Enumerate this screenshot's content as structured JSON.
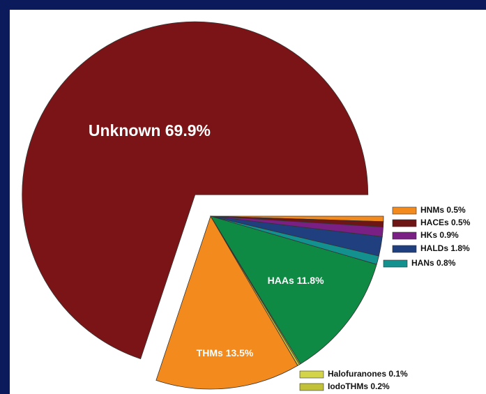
{
  "chart_data": {
    "type": "pie",
    "labels": [
      "HNMs 0.5%",
      "HACEs 0.5%",
      "HKs 0.9%",
      "HALDs 1.8%",
      "HANs 0.8%",
      "HAAs 11.8%",
      "Halofuranones 0.1%",
      "IodoTHMs 0.2%",
      "THMs 13.5%",
      "Unknown 69.9%"
    ],
    "values": [
      0.5,
      0.5,
      0.9,
      1.8,
      0.8,
      11.8,
      0.1,
      0.2,
      13.5,
      69.9
    ],
    "colors": [
      "#f28a1e",
      "#6e1616",
      "#7a1f84",
      "#1f3f7f",
      "#12918f",
      "#0f8a45",
      "#d4d44a",
      "#c2c238",
      "#f28a1e",
      "#7b1416"
    ],
    "exploded": [
      false,
      false,
      false,
      false,
      false,
      false,
      false,
      false,
      false,
      true
    ]
  }
}
